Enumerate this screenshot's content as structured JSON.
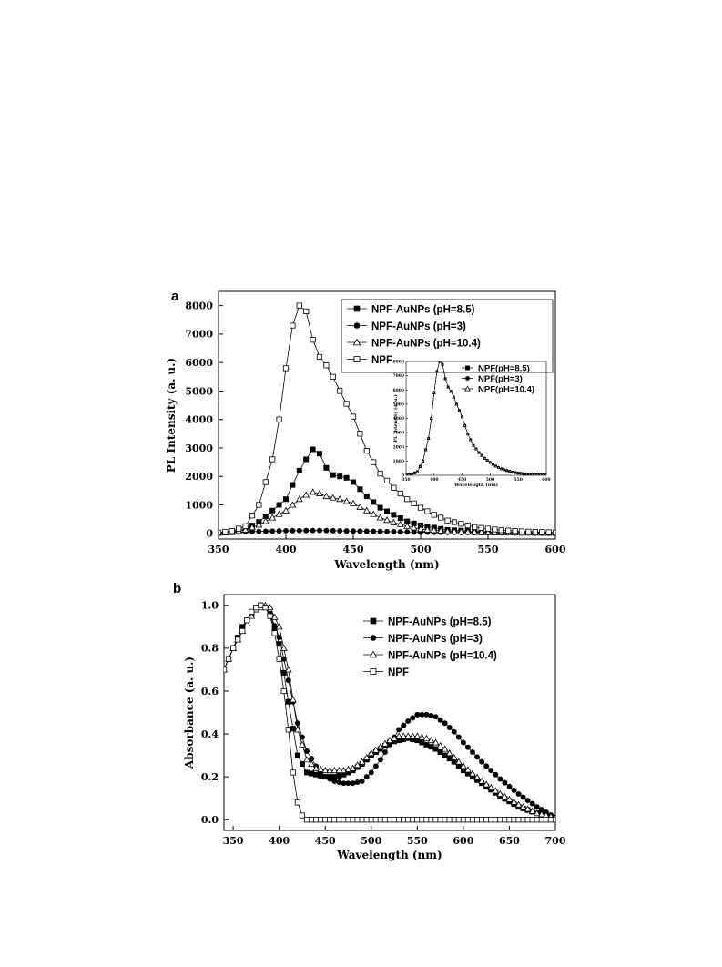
{
  "chart_data": [
    {
      "panel": "a",
      "type": "line",
      "xlabel": "Wavelength (nm)",
      "ylabel": "PL Intensity (a. u.)",
      "xlim": [
        350,
        600
      ],
      "ylim": [
        -200,
        8500
      ],
      "xticks": [
        350,
        400,
        450,
        500,
        550,
        600
      ],
      "yticks": [
        0,
        1000,
        2000,
        3000,
        4000,
        5000,
        6000,
        7000,
        8000
      ],
      "legend_position": "top-right",
      "series": [
        {
          "name": "NPF-AuNPs (pH=8.5)",
          "marker": "square-filled",
          "x": [
            350,
            360,
            370,
            380,
            390,
            400,
            405,
            410,
            415,
            420,
            422,
            425,
            430,
            435,
            440,
            445,
            450,
            460,
            470,
            480,
            490,
            500,
            520,
            550,
            600
          ],
          "y": [
            20,
            60,
            150,
            400,
            800,
            1200,
            1700,
            2200,
            2600,
            2950,
            3000,
            2800,
            2300,
            2050,
            2000,
            1950,
            1800,
            1300,
            900,
            650,
            420,
            280,
            120,
            50,
            20
          ]
        },
        {
          "name": "NPF-AuNPs (pH=3)",
          "marker": "circle-filled",
          "x": [
            350,
            375,
            400,
            425,
            450,
            475,
            500,
            525,
            550,
            575,
            600
          ],
          "y": [
            10,
            60,
            90,
            100,
            80,
            60,
            40,
            30,
            20,
            10,
            0
          ]
        },
        {
          "name": "NPF-AuNPs (pH=10.4)",
          "marker": "triangle-open",
          "x": [
            350,
            360,
            370,
            380,
            390,
            400,
            405,
            410,
            415,
            420,
            422,
            425,
            430,
            440,
            450,
            460,
            470,
            480,
            490,
            500,
            520,
            550,
            600
          ],
          "y": [
            10,
            40,
            120,
            300,
            550,
            800,
            1000,
            1200,
            1350,
            1450,
            1480,
            1400,
            1300,
            1200,
            1050,
            800,
            550,
            380,
            250,
            150,
            70,
            30,
            10
          ]
        },
        {
          "name": "NPF",
          "marker": "square-open",
          "x": [
            350,
            360,
            370,
            380,
            390,
            395,
            400,
            405,
            410,
            412,
            415,
            420,
            425,
            430,
            435,
            440,
            450,
            460,
            470,
            480,
            490,
            500,
            510,
            520,
            540,
            560,
            580,
            600
          ],
          "y": [
            30,
            80,
            250,
            1000,
            2600,
            4000,
            5800,
            7300,
            8000,
            8050,
            7800,
            6800,
            6200,
            5900,
            5500,
            5000,
            4100,
            2900,
            2100,
            1600,
            1200,
            900,
            650,
            450,
            220,
            110,
            60,
            30
          ]
        }
      ]
    },
    {
      "panel": "a-inset",
      "type": "line",
      "xlabel": "Wavelength (nm)",
      "ylabel": "PL Intensity (a. u.)",
      "xlim": [
        350,
        600
      ],
      "ylim": [
        0,
        8000
      ],
      "xticks": [
        350,
        400,
        450,
        500,
        550,
        600
      ],
      "yticks": [
        0,
        1000,
        2000,
        3000,
        4000,
        5000,
        6000,
        7000,
        8000
      ],
      "series": [
        {
          "name": "NPF(pH=8.5)",
          "marker": "square-filled",
          "x": [
            350,
            360,
            370,
            380,
            390,
            395,
            400,
            405,
            410,
            412,
            415,
            420,
            425,
            430,
            435,
            440,
            450,
            460,
            470,
            480,
            490,
            500,
            510,
            520,
            540,
            560,
            580,
            600
          ],
          "y": [
            30,
            80,
            250,
            1000,
            2600,
            4000,
            5800,
            7300,
            8000,
            8050,
            7800,
            6800,
            6200,
            5900,
            5500,
            5000,
            4100,
            2900,
            2100,
            1600,
            1200,
            900,
            650,
            450,
            220,
            110,
            60,
            30
          ]
        },
        {
          "name": "NPF(pH=3)",
          "marker": "circle-filled",
          "x": [
            350,
            360,
            370,
            380,
            390,
            395,
            400,
            405,
            410,
            412,
            415,
            420,
            425,
            430,
            435,
            440,
            450,
            460,
            470,
            480,
            490,
            500,
            510,
            520,
            540,
            560,
            580,
            600
          ],
          "y": [
            30,
            80,
            250,
            1000,
            2600,
            4000,
            5800,
            7300,
            8000,
            8050,
            7800,
            6800,
            6200,
            5900,
            5500,
            5000,
            4100,
            2900,
            2100,
            1600,
            1200,
            900,
            650,
            450,
            220,
            110,
            60,
            30
          ]
        },
        {
          "name": "NPF(pH=10.4)",
          "marker": "triangle-open",
          "x": [
            350,
            360,
            370,
            380,
            390,
            395,
            400,
            405,
            410,
            412,
            415,
            420,
            425,
            430,
            435,
            440,
            450,
            460,
            470,
            480,
            490,
            500,
            510,
            520,
            540,
            560,
            580,
            600
          ],
          "y": [
            30,
            80,
            250,
            1000,
            2600,
            4000,
            5800,
            7300,
            8000,
            8050,
            7800,
            6800,
            6200,
            5900,
            5500,
            5000,
            4100,
            2900,
            2100,
            1600,
            1200,
            900,
            650,
            450,
            220,
            110,
            60,
            30
          ]
        }
      ]
    },
    {
      "panel": "b",
      "type": "line",
      "xlabel": "Wavelength (nm)",
      "ylabel": "Absorbance (a. u.)",
      "xlim": [
        340,
        700
      ],
      "ylim": [
        -0.05,
        1.05
      ],
      "xticks": [
        350,
        400,
        450,
        500,
        550,
        600,
        650,
        700
      ],
      "yticks": [
        0.0,
        0.2,
        0.4,
        0.6,
        0.8,
        1.0
      ],
      "legend_position": "top-right",
      "series": [
        {
          "name": "NPF-AuNPs (pH=8.5)",
          "marker": "square-filled",
          "x": [
            340,
            350,
            360,
            370,
            375,
            380,
            385,
            390,
            400,
            410,
            420,
            430,
            440,
            450,
            460,
            470,
            480,
            490,
            500,
            510,
            520,
            530,
            540,
            550,
            560,
            570,
            580,
            590,
            600,
            620,
            640,
            660,
            680,
            700
          ],
          "y": [
            0.7,
            0.8,
            0.9,
            0.96,
            0.99,
            1.0,
            0.99,
            0.96,
            0.82,
            0.55,
            0.3,
            0.22,
            0.21,
            0.2,
            0.2,
            0.21,
            0.23,
            0.26,
            0.3,
            0.33,
            0.36,
            0.37,
            0.38,
            0.37,
            0.35,
            0.33,
            0.3,
            0.27,
            0.23,
            0.17,
            0.11,
            0.06,
            0.03,
            0.01
          ]
        },
        {
          "name": "NPF-AuNPs (pH=3)",
          "marker": "circle-filled",
          "x": [
            340,
            350,
            360,
            370,
            375,
            380,
            385,
            390,
            400,
            410,
            420,
            430,
            440,
            450,
            460,
            470,
            480,
            490,
            500,
            510,
            520,
            530,
            540,
            550,
            560,
            570,
            580,
            590,
            600,
            620,
            640,
            660,
            680,
            700
          ],
          "y": [
            0.7,
            0.8,
            0.9,
            0.96,
            0.99,
            1.0,
            0.99,
            0.96,
            0.85,
            0.65,
            0.45,
            0.32,
            0.25,
            0.2,
            0.18,
            0.17,
            0.17,
            0.18,
            0.22,
            0.28,
            0.35,
            0.42,
            0.46,
            0.49,
            0.49,
            0.48,
            0.45,
            0.41,
            0.36,
            0.27,
            0.19,
            0.12,
            0.06,
            0.01
          ]
        },
        {
          "name": "NPF-AuNPs (pH=10.4)",
          "marker": "triangle-open",
          "x": [
            340,
            350,
            360,
            370,
            375,
            380,
            385,
            390,
            400,
            410,
            420,
            430,
            440,
            450,
            460,
            470,
            480,
            490,
            500,
            510,
            520,
            530,
            540,
            550,
            560,
            570,
            580,
            590,
            600,
            620,
            640,
            660,
            680,
            700
          ],
          "y": [
            0.7,
            0.8,
            0.88,
            0.95,
            0.98,
            0.99,
            1.0,
            0.99,
            0.9,
            0.7,
            0.42,
            0.28,
            0.24,
            0.23,
            0.23,
            0.23,
            0.24,
            0.27,
            0.31,
            0.34,
            0.37,
            0.39,
            0.39,
            0.39,
            0.38,
            0.36,
            0.33,
            0.29,
            0.25,
            0.18,
            0.12,
            0.07,
            0.03,
            0.01
          ]
        },
        {
          "name": "NPF",
          "marker": "square-open",
          "x": [
            340,
            350,
            360,
            365,
            370,
            375,
            380,
            385,
            390,
            395,
            400,
            405,
            410,
            415,
            420,
            425,
            430,
            435,
            440,
            450,
            470,
            500,
            550,
            600,
            650,
            700
          ],
          "y": [
            0.7,
            0.8,
            0.88,
            0.93,
            0.97,
            0.99,
            1.0,
            0.99,
            0.95,
            0.87,
            0.75,
            0.6,
            0.42,
            0.22,
            0.08,
            0.02,
            0.0,
            0.0,
            0.0,
            0.0,
            0.0,
            0.0,
            0.0,
            0.0,
            0.0,
            0.0
          ]
        }
      ]
    }
  ],
  "panels": {
    "a": {
      "letter": "a"
    },
    "b": {
      "letter": "b"
    }
  }
}
